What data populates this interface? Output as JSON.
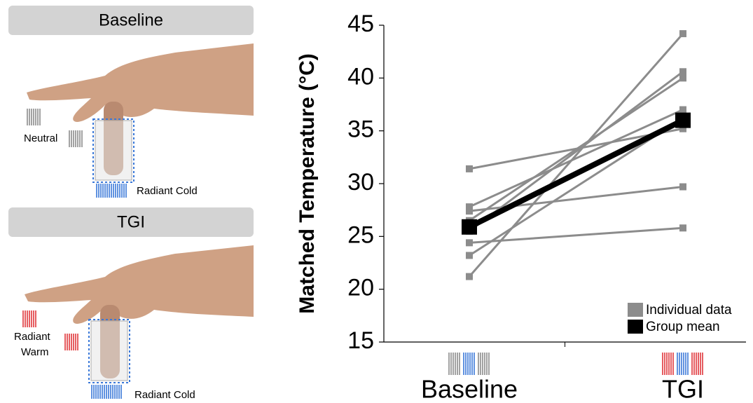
{
  "illustration": {
    "baseline_panel": {
      "title": "Baseline",
      "neutral_label": "Neutral",
      "cold_label": "Radiant Cold"
    },
    "tgi_panel": {
      "title": "TGI",
      "warm_label_line1": "Radiant",
      "warm_label_line2": "Warm",
      "cold_label": "Radiant Cold"
    }
  },
  "chart_data": {
    "type": "line",
    "y_label": "Matched Temperature (°C)",
    "categories": [
      "Baseline",
      "TGI"
    ],
    "ylim": [
      15,
      45
    ],
    "yticks": [
      15,
      20,
      25,
      30,
      35,
      40,
      45
    ],
    "legend": "bottom-right",
    "series": [
      {
        "name": "Individual data",
        "color": "#8c8c8c",
        "subjects": [
          [
            31.4,
            35.2
          ],
          [
            27.8,
            37.0
          ],
          [
            27.4,
            29.7
          ],
          [
            26.5,
            40.0
          ],
          [
            25.5,
            40.6
          ],
          [
            24.4,
            25.8
          ],
          [
            23.2,
            36.2
          ],
          [
            21.2,
            44.2
          ]
        ]
      },
      {
        "name": "Group mean",
        "color": "#000000",
        "values": [
          25.9,
          36.0
        ]
      }
    ]
  }
}
